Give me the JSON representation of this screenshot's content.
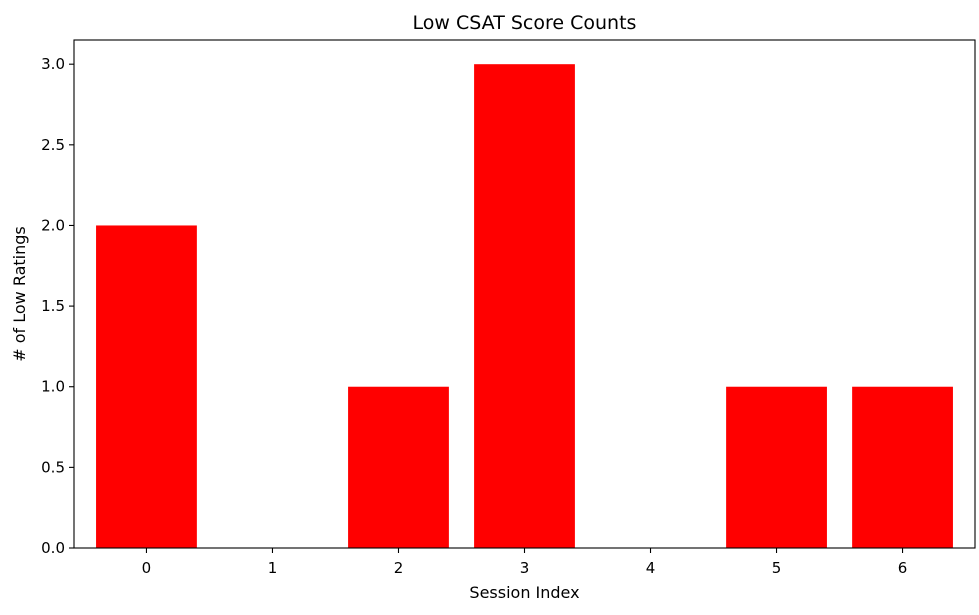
{
  "chart_data": {
    "type": "bar",
    "title": "Low CSAT Score Counts",
    "xlabel": "Session Index",
    "ylabel": "# of Low Ratings",
    "categories": [
      "0",
      "1",
      "2",
      "3",
      "4",
      "5",
      "6"
    ],
    "values": [
      2,
      0,
      1,
      3,
      0,
      1,
      1
    ],
    "ylim": [
      0,
      3.15
    ],
    "yticks": [
      "0.0",
      "0.5",
      "1.0",
      "1.5",
      "2.0",
      "2.5",
      "3.0"
    ],
    "bar_color": "#ff0000",
    "grid": false,
    "legend": "none"
  }
}
